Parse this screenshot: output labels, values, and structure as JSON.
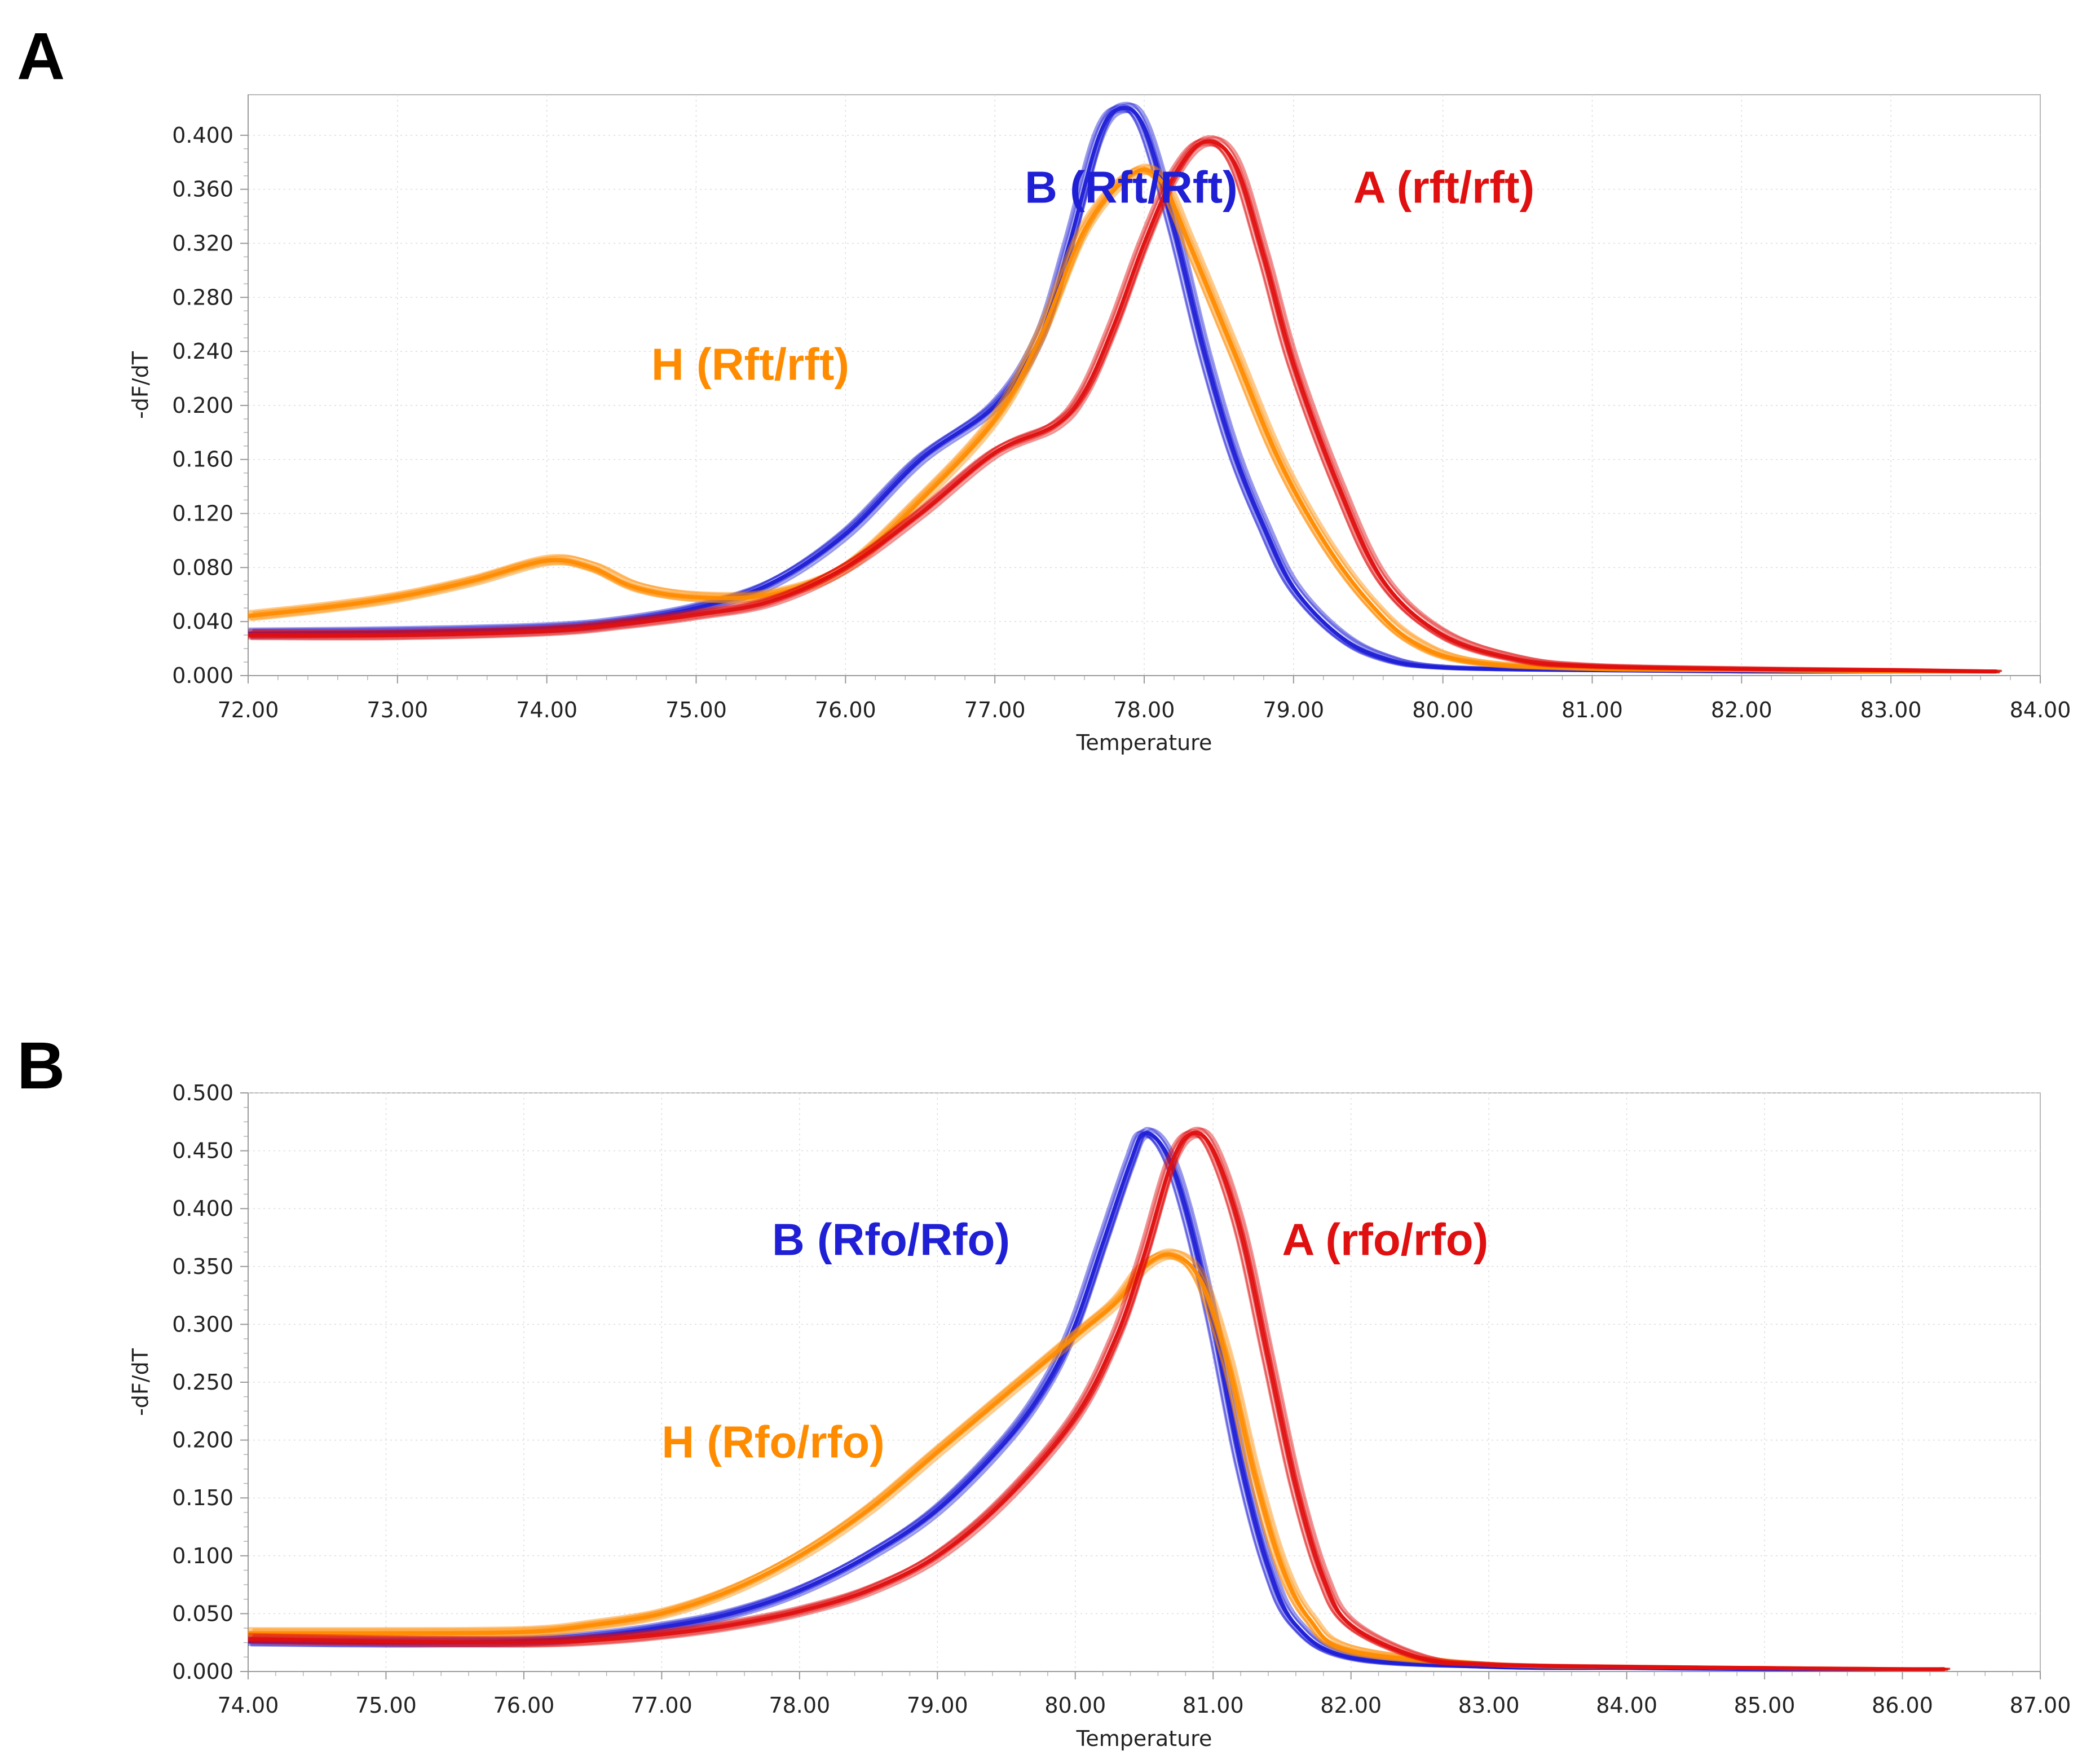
{
  "figure": {
    "panels": [
      "A",
      "B"
    ]
  },
  "colors": {
    "B_genotype": "#1f1fd6",
    "A_genotype": "#e01010",
    "H_genotype": "#ff8c00"
  },
  "chart_data": [
    {
      "panel": "A",
      "type": "line",
      "title": "",
      "xlabel": "Temperature",
      "ylabel": "-dF/dT",
      "xlim": [
        72.0,
        84.0
      ],
      "ylim": [
        0.0,
        0.43
      ],
      "x_ticks": [
        "72.00",
        "73.00",
        "74.00",
        "75.00",
        "76.00",
        "77.00",
        "78.00",
        "79.00",
        "80.00",
        "81.00",
        "82.00",
        "83.00",
        "84.00"
      ],
      "y_ticks": [
        "0.000",
        "0.040",
        "0.080",
        "0.120",
        "0.160",
        "0.200",
        "0.240",
        "0.280",
        "0.320",
        "0.360",
        "0.400"
      ],
      "grid": true,
      "annotations": [
        {
          "text": "B (Rft/Rft)",
          "color_key": "B_genotype",
          "at": [
            77.2,
            0.35
          ]
        },
        {
          "text": "A (rft/rft)",
          "color_key": "A_genotype",
          "at": [
            79.4,
            0.35
          ]
        },
        {
          "text": "H (Rft/rft)",
          "color_key": "H_genotype",
          "at": [
            74.7,
            0.219
          ]
        }
      ],
      "series": [
        {
          "name": "B (Rft/Rft)",
          "color_key": "B_genotype",
          "replicates": 10,
          "points": [
            [
              72.0,
              0.031
            ],
            [
              73.0,
              0.032
            ],
            [
              74.0,
              0.035
            ],
            [
              74.5,
              0.04
            ],
            [
              75.0,
              0.05
            ],
            [
              75.5,
              0.068
            ],
            [
              76.0,
              0.105
            ],
            [
              76.5,
              0.16
            ],
            [
              77.0,
              0.2
            ],
            [
              77.3,
              0.25
            ],
            [
              77.5,
              0.32
            ],
            [
              77.7,
              0.4
            ],
            [
              77.85,
              0.42
            ],
            [
              78.0,
              0.405
            ],
            [
              78.2,
              0.33
            ],
            [
              78.4,
              0.24
            ],
            [
              78.6,
              0.165
            ],
            [
              78.8,
              0.11
            ],
            [
              79.0,
              0.065
            ],
            [
              79.3,
              0.03
            ],
            [
              79.6,
              0.013
            ],
            [
              80.0,
              0.006
            ],
            [
              81.0,
              0.004
            ],
            [
              82.0,
              0.003
            ],
            [
              83.0,
              0.003
            ],
            [
              83.7,
              0.003
            ]
          ]
        },
        {
          "name": "H (Rft/rft)",
          "color_key": "H_genotype",
          "replicates": 10,
          "points": [
            [
              72.0,
              0.044
            ],
            [
              72.5,
              0.05
            ],
            [
              73.0,
              0.058
            ],
            [
              73.5,
              0.07
            ],
            [
              74.0,
              0.085
            ],
            [
              74.3,
              0.08
            ],
            [
              74.6,
              0.065
            ],
            [
              75.0,
              0.058
            ],
            [
              75.5,
              0.06
            ],
            [
              76.0,
              0.08
            ],
            [
              76.5,
              0.13
            ],
            [
              77.0,
              0.19
            ],
            [
              77.3,
              0.25
            ],
            [
              77.6,
              0.33
            ],
            [
              77.9,
              0.37
            ],
            [
              78.1,
              0.368
            ],
            [
              78.3,
              0.32
            ],
            [
              78.6,
              0.24
            ],
            [
              78.9,
              0.16
            ],
            [
              79.2,
              0.1
            ],
            [
              79.5,
              0.055
            ],
            [
              79.8,
              0.025
            ],
            [
              80.2,
              0.01
            ],
            [
              81.0,
              0.005
            ],
            [
              82.0,
              0.004
            ],
            [
              83.0,
              0.003
            ],
            [
              83.7,
              0.003
            ]
          ]
        },
        {
          "name": "A (rft/rft)",
          "color_key": "A_genotype",
          "replicates": 10,
          "points": [
            [
              72.0,
              0.03
            ],
            [
              73.0,
              0.03
            ],
            [
              74.0,
              0.033
            ],
            [
              74.5,
              0.038
            ],
            [
              75.0,
              0.045
            ],
            [
              75.5,
              0.055
            ],
            [
              76.0,
              0.08
            ],
            [
              76.5,
              0.12
            ],
            [
              77.0,
              0.165
            ],
            [
              77.4,
              0.185
            ],
            [
              77.6,
              0.21
            ],
            [
              77.8,
              0.26
            ],
            [
              78.0,
              0.32
            ],
            [
              78.2,
              0.37
            ],
            [
              78.4,
              0.395
            ],
            [
              78.6,
              0.38
            ],
            [
              78.8,
              0.31
            ],
            [
              79.0,
              0.23
            ],
            [
              79.3,
              0.14
            ],
            [
              79.6,
              0.07
            ],
            [
              80.0,
              0.03
            ],
            [
              80.5,
              0.012
            ],
            [
              81.0,
              0.007
            ],
            [
              82.0,
              0.005
            ],
            [
              83.0,
              0.004
            ],
            [
              83.7,
              0.003
            ]
          ]
        }
      ]
    },
    {
      "panel": "B",
      "type": "line",
      "title": "",
      "xlabel": "Temperature",
      "ylabel": "-dF/dT",
      "xlim": [
        74.0,
        87.0
      ],
      "ylim": [
        0.0,
        0.5
      ],
      "x_ticks": [
        "74.00",
        "75.00",
        "76.00",
        "77.00",
        "78.00",
        "79.00",
        "80.00",
        "81.00",
        "82.00",
        "83.00",
        "84.00",
        "85.00",
        "86.00",
        "87.00"
      ],
      "y_ticks": [
        "0.000",
        "0.050",
        "0.100",
        "0.150",
        "0.200",
        "0.250",
        "0.300",
        "0.350",
        "0.400",
        "0.450",
        "0.500"
      ],
      "grid": true,
      "annotations": [
        {
          "text": "B (Rfo/Rfo)",
          "color_key": "B_genotype",
          "at": [
            77.8,
            0.36
          ]
        },
        {
          "text": "A (rfo/rfo)",
          "color_key": "A_genotype",
          "at": [
            81.5,
            0.36
          ]
        },
        {
          "text": "H (Rfo/rfo)",
          "color_key": "H_genotype",
          "at": [
            77.0,
            0.185
          ]
        }
      ],
      "series": [
        {
          "name": "B (Rfo/Rfo)",
          "color_key": "B_genotype",
          "replicates": 10,
          "points": [
            [
              74.0,
              0.026
            ],
            [
              75.0,
              0.025
            ],
            [
              76.0,
              0.026
            ],
            [
              76.5,
              0.03
            ],
            [
              77.0,
              0.038
            ],
            [
              77.5,
              0.05
            ],
            [
              78.0,
              0.07
            ],
            [
              78.5,
              0.1
            ],
            [
              79.0,
              0.14
            ],
            [
              79.5,
              0.2
            ],
            [
              79.8,
              0.25
            ],
            [
              80.0,
              0.3
            ],
            [
              80.2,
              0.37
            ],
            [
              80.4,
              0.44
            ],
            [
              80.5,
              0.465
            ],
            [
              80.65,
              0.45
            ],
            [
              80.8,
              0.4
            ],
            [
              81.0,
              0.3
            ],
            [
              81.2,
              0.18
            ],
            [
              81.4,
              0.09
            ],
            [
              81.6,
              0.04
            ],
            [
              82.0,
              0.012
            ],
            [
              83.0,
              0.004
            ],
            [
              84.0,
              0.003
            ],
            [
              85.0,
              0.002
            ],
            [
              86.0,
              0.002
            ],
            [
              86.3,
              0.002
            ]
          ]
        },
        {
          "name": "H (Rfo/rfo)",
          "color_key": "H_genotype",
          "replicates": 10,
          "points": [
            [
              74.0,
              0.033
            ],
            [
              75.0,
              0.033
            ],
            [
              76.0,
              0.034
            ],
            [
              76.5,
              0.04
            ],
            [
              77.0,
              0.05
            ],
            [
              77.5,
              0.07
            ],
            [
              78.0,
              0.1
            ],
            [
              78.5,
              0.14
            ],
            [
              79.0,
              0.19
            ],
            [
              79.5,
              0.24
            ],
            [
              80.0,
              0.29
            ],
            [
              80.3,
              0.32
            ],
            [
              80.5,
              0.35
            ],
            [
              80.7,
              0.36
            ],
            [
              80.9,
              0.34
            ],
            [
              81.1,
              0.27
            ],
            [
              81.3,
              0.17
            ],
            [
              81.5,
              0.09
            ],
            [
              81.7,
              0.045
            ],
            [
              82.0,
              0.018
            ],
            [
              83.0,
              0.006
            ],
            [
              84.0,
              0.004
            ],
            [
              85.0,
              0.003
            ],
            [
              86.0,
              0.002
            ],
            [
              86.3,
              0.002
            ]
          ]
        },
        {
          "name": "A (rfo/rfo)",
          "color_key": "A_genotype",
          "replicates": 10,
          "points": [
            [
              74.0,
              0.028
            ],
            [
              75.0,
              0.026
            ],
            [
              76.0,
              0.025
            ],
            [
              76.5,
              0.027
            ],
            [
              77.0,
              0.032
            ],
            [
              77.5,
              0.04
            ],
            [
              78.0,
              0.052
            ],
            [
              78.5,
              0.07
            ],
            [
              79.0,
              0.1
            ],
            [
              79.5,
              0.15
            ],
            [
              80.0,
              0.22
            ],
            [
              80.3,
              0.29
            ],
            [
              80.5,
              0.36
            ],
            [
              80.7,
              0.44
            ],
            [
              80.85,
              0.465
            ],
            [
              81.0,
              0.45
            ],
            [
              81.2,
              0.38
            ],
            [
              81.4,
              0.27
            ],
            [
              81.6,
              0.16
            ],
            [
              81.8,
              0.08
            ],
            [
              82.0,
              0.04
            ],
            [
              82.5,
              0.012
            ],
            [
              83.0,
              0.006
            ],
            [
              84.0,
              0.004
            ],
            [
              85.0,
              0.003
            ],
            [
              86.0,
              0.002
            ],
            [
              86.3,
              0.002
            ]
          ]
        }
      ]
    }
  ]
}
